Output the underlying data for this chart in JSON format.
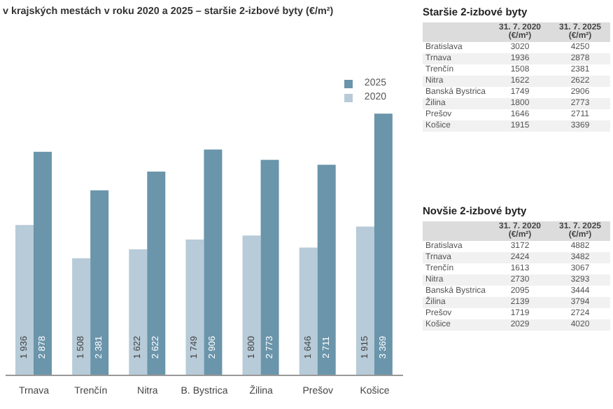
{
  "chart_data": [
    {
      "type": "bar",
      "title": "v krajských mestách v roku 2020 a 2025 – staršie 2-izbové byty (€/m²)",
      "categories": [
        "Trnava",
        "Trenčín",
        "Nitra",
        "B. Bystrica",
        "Žilina",
        "Prešov",
        "Košice"
      ],
      "series": [
        {
          "name": "2020",
          "color": "#b7cbd8",
          "values": [
            1936,
            1508,
            1622,
            1749,
            1800,
            1646,
            1915
          ],
          "value_labels": [
            "1 936",
            "1 508",
            "1 622",
            "1 749",
            "1 800",
            "1 646",
            "1 915"
          ]
        },
        {
          "name": "2025",
          "color": "#6a95ab",
          "values": [
            2878,
            2381,
            2622,
            2906,
            2773,
            2711,
            3369
          ],
          "value_labels": [
            "2 878",
            "2 381",
            "2 622",
            "2 906",
            "2 773",
            "2 711",
            "3 369"
          ]
        }
      ],
      "legend": "top right"
    },
    {
      "type": "other",
      "title": "Staršie 2-izbové byty",
      "categories": [
        "Bratislava",
        "Trnava",
        "Trenčín",
        "Nitra",
        "Banská Bystrica",
        "Žilina",
        "Prešov",
        "Košice"
      ],
      "series": [
        {
          "name": "31. 7. 2020 (€/m²)",
          "values": [
            3020,
            1936,
            1508,
            1622,
            1749,
            1800,
            1646,
            1915
          ],
          "colors": [
            "#ffffff",
            "#f1f1f1",
            "#ffffff",
            "#f1f1f1",
            "#ffffff",
            "#f1f1f1",
            "#ffffff",
            "#f1f1f1"
          ]
        },
        {
          "name": "31. 7. 2025 (€/m²)",
          "values": [
            4250,
            2878,
            2381,
            2622,
            2906,
            2773,
            2711,
            3369
          ],
          "colors": [
            "#ffffff",
            "#f1f1f1",
            "#ffffff",
            "#f1f1f1",
            "#ffffff",
            "#f1f1f1",
            "#ffffff",
            "#f1f1f1"
          ]
        }
      ],
      "data_labels": true
    },
    {
      "type": "other",
      "title": "Novšie 2-izbové byty",
      "categories": [
        "Bratislava",
        "Trnava",
        "Trenčín",
        "Nitra",
        "Banská Bystrica",
        "Žilina",
        "Prešov",
        "Košice"
      ],
      "series": [
        {
          "name": "31. 7. 2020 (€/m²)",
          "values": [
            3172,
            2424,
            1613,
            2730,
            2095,
            2139,
            1719,
            2029
          ],
          "colors": [
            "#ffffff",
            "#f1f1f1",
            "#ffffff",
            "#f1f1f1",
            "#ffffff",
            "#f1f1f1",
            "#ffffff",
            "#f1f1f1"
          ]
        },
        {
          "name": "31. 7. 2025 (€/m²)",
          "values": [
            4882,
            3482,
            3067,
            3293,
            3444,
            3794,
            2724,
            4020
          ],
          "colors": [
            "#ffffff",
            "#f1f1f1",
            "#ffffff",
            "#f1f1f1",
            "#ffffff",
            "#f1f1f1",
            "#ffffff",
            "#f1f1f1"
          ]
        }
      ],
      "data_labels": true
    }
  ]
}
